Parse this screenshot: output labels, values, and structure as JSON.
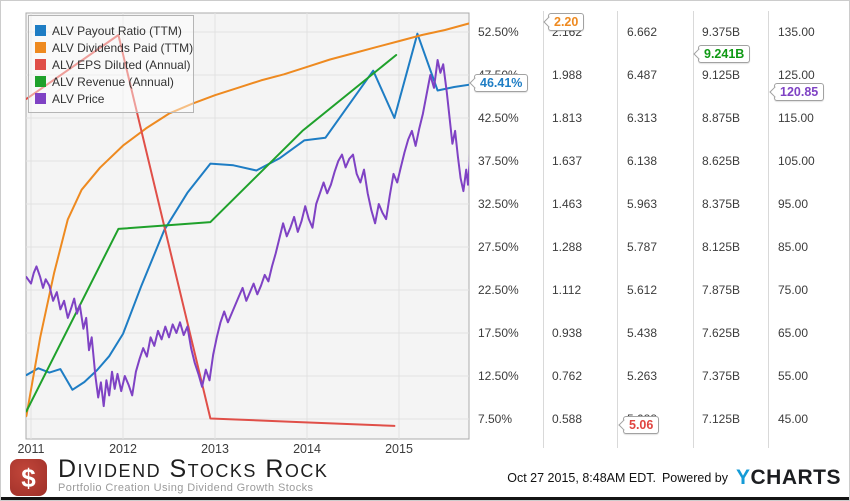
{
  "legend": {
    "items": [
      {
        "label": "ALV Payout Ratio (TTM)",
        "color": "#1e7dc4"
      },
      {
        "label": "ALV Dividends Paid (TTM)",
        "color": "#ee8a20"
      },
      {
        "label": "ALV EPS Diluted (Annual)",
        "color": "#e04f48"
      },
      {
        "label": "ALV Revenue (Annual)",
        "color": "#1fa12b"
      },
      {
        "label": "ALV Price",
        "color": "#7f42c4"
      }
    ]
  },
  "chart_data": {
    "type": "line",
    "grid": true,
    "legend_position": "top-left",
    "x_axis": {
      "tick_labels": [
        "2011",
        "2012",
        "2013",
        "2014",
        "2015"
      ],
      "tick_years": [
        2011,
        2012,
        2013,
        2014,
        2015
      ],
      "range": [
        2010.95,
        2015.79
      ]
    },
    "y_axes": [
      {
        "id": "payout_ratio",
        "tick_labels": [
          "52.50%",
          "47.50%",
          "42.50%",
          "37.50%",
          "32.50%",
          "27.50%",
          "22.50%",
          "17.50%",
          "12.50%",
          "7.50%"
        ],
        "tick_values": [
          52.5,
          47.5,
          42.5,
          37.5,
          32.5,
          27.5,
          22.5,
          17.5,
          12.5,
          7.5
        ],
        "callout": {
          "label": "46.41%",
          "value": 46.41,
          "color": "#1e7dc4"
        }
      },
      {
        "id": "dividends_paid",
        "tick_labels": [
          "2.162",
          "1.988",
          "1.813",
          "1.637",
          "1.463",
          "1.288",
          "1.112",
          "0.938",
          "0.762",
          "0.588"
        ],
        "tick_values": [
          2.162,
          1.988,
          1.813,
          1.637,
          1.463,
          1.288,
          1.112,
          0.938,
          0.762,
          0.588
        ],
        "callout": {
          "label": "2.20",
          "value": 2.2,
          "color": "#ee8a20"
        }
      },
      {
        "id": "eps_diluted",
        "tick_labels": [
          "6.662",
          "6.487",
          "6.313",
          "6.138",
          "5.963",
          "5.787",
          "5.612",
          "5.438",
          "5.263",
          "5.088"
        ],
        "tick_values": [
          6.662,
          6.487,
          6.313,
          6.138,
          5.963,
          5.787,
          5.612,
          5.438,
          5.263,
          5.088
        ],
        "callout": {
          "label": "5.06",
          "value": 5.06,
          "color": "#e04440"
        }
      },
      {
        "id": "revenue",
        "tick_labels": [
          "9.375B",
          "9.125B",
          "8.875B",
          "8.625B",
          "8.375B",
          "8.125B",
          "7.875B",
          "7.625B",
          "7.375B",
          "7.125B"
        ],
        "tick_values": [
          9.375,
          9.125,
          8.875,
          8.625,
          8.375,
          8.125,
          7.875,
          7.625,
          7.375,
          7.125
        ],
        "callout": {
          "label": "9.241B",
          "value": 9.241,
          "color": "#0f9914"
        }
      },
      {
        "id": "price",
        "tick_labels": [
          "135.00",
          "125.00",
          "115.00",
          "105.00",
          "95.00",
          "85.00",
          "75.00",
          "65.00",
          "55.00",
          "45.00"
        ],
        "tick_values": [
          135,
          125,
          115,
          105,
          95,
          85,
          75,
          65,
          55,
          45
        ],
        "callout": {
          "label": "120.85",
          "value": 120.85,
          "color": "#7f42c4"
        }
      }
    ],
    "series": [
      {
        "name": "ALV Payout Ratio (TTM)",
        "axis": "payout_ratio",
        "color": "#1e7dc4",
        "points": [
          [
            2010.95,
            12.6
          ],
          [
            2011.08,
            13.4
          ],
          [
            2011.2,
            12.9
          ],
          [
            2011.32,
            13.3
          ],
          [
            2011.45,
            10.9
          ],
          [
            2011.58,
            11.8
          ],
          [
            2011.72,
            13.2
          ],
          [
            2011.85,
            14.8
          ],
          [
            2012.0,
            17.4
          ],
          [
            2012.2,
            23.0
          ],
          [
            2012.45,
            29.5
          ],
          [
            2012.7,
            33.8
          ],
          [
            2012.95,
            37.2
          ],
          [
            2013.2,
            37.0
          ],
          [
            2013.45,
            36.4
          ],
          [
            2013.7,
            37.8
          ],
          [
            2013.97,
            39.9
          ],
          [
            2014.2,
            40.2
          ],
          [
            2014.72,
            48.0
          ],
          [
            2014.95,
            42.5
          ],
          [
            2015.2,
            52.3
          ],
          [
            2015.42,
            45.7
          ],
          [
            2015.6,
            46.1
          ],
          [
            2015.79,
            46.41
          ]
        ]
      },
      {
        "name": "ALV Dividends Paid (TTM)",
        "axis": "dividends_paid",
        "color": "#ee8a20",
        "points": [
          [
            2010.95,
            0.6
          ],
          [
            2011.1,
            0.92
          ],
          [
            2011.25,
            1.18
          ],
          [
            2011.4,
            1.4
          ],
          [
            2011.55,
            1.52
          ],
          [
            2011.75,
            1.61
          ],
          [
            2012.0,
            1.7
          ],
          [
            2012.25,
            1.77
          ],
          [
            2012.5,
            1.83
          ],
          [
            2012.75,
            1.87
          ],
          [
            2013.0,
            1.905
          ],
          [
            2013.25,
            1.935
          ],
          [
            2013.5,
            1.965
          ],
          [
            2013.75,
            1.99
          ],
          [
            2014.0,
            2.02
          ],
          [
            2014.25,
            2.05
          ],
          [
            2014.5,
            2.075
          ],
          [
            2014.75,
            2.1
          ],
          [
            2015.0,
            2.125
          ],
          [
            2015.25,
            2.15
          ],
          [
            2015.5,
            2.17
          ],
          [
            2015.79,
            2.2
          ]
        ]
      },
      {
        "name": "ALV EPS Diluted (Annual)",
        "axis": "eps_diluted",
        "color": "#e04f48",
        "points": [
          [
            2010.95,
            6.39
          ],
          [
            2011.95,
            6.65
          ],
          [
            2012.95,
            5.09
          ],
          [
            2013.95,
            5.075
          ],
          [
            2014.95,
            5.06
          ]
        ]
      },
      {
        "name": "ALV Revenue (Annual)",
        "axis": "revenue",
        "color": "#1fa12b",
        "points": [
          [
            2010.95,
            7.17
          ],
          [
            2011.95,
            8.23
          ],
          [
            2012.95,
            8.27
          ],
          [
            2013.95,
            8.8
          ],
          [
            2014.97,
            9.241
          ]
        ]
      },
      {
        "name": "ALV Price",
        "axis": "price",
        "color": "#7f42c4",
        "points": [
          [
            2010.95,
            78
          ],
          [
            2011.0,
            76.5
          ],
          [
            2011.03,
            79
          ],
          [
            2011.06,
            80.5
          ],
          [
            2011.1,
            78
          ],
          [
            2011.13,
            75.5
          ],
          [
            2011.16,
            77.5
          ],
          [
            2011.2,
            76
          ],
          [
            2011.24,
            72.5
          ],
          [
            2011.28,
            74.5
          ],
          [
            2011.32,
            70.5
          ],
          [
            2011.36,
            72.5
          ],
          [
            2011.4,
            68.5
          ],
          [
            2011.44,
            71
          ],
          [
            2011.47,
            73
          ],
          [
            2011.5,
            69.5
          ],
          [
            2011.53,
            71.5
          ],
          [
            2011.57,
            66
          ],
          [
            2011.6,
            68.5
          ],
          [
            2011.63,
            61
          ],
          [
            2011.66,
            64
          ],
          [
            2011.7,
            55
          ],
          [
            2011.73,
            50
          ],
          [
            2011.76,
            53.5
          ],
          [
            2011.79,
            48
          ],
          [
            2011.82,
            54
          ],
          [
            2011.85,
            50.5
          ],
          [
            2011.88,
            56
          ],
          [
            2011.91,
            52
          ],
          [
            2011.94,
            55.5
          ],
          [
            2011.98,
            51.5
          ],
          [
            2012.02,
            55
          ],
          [
            2012.06,
            53
          ],
          [
            2012.1,
            50.5
          ],
          [
            2012.14,
            56
          ],
          [
            2012.18,
            59
          ],
          [
            2012.22,
            61.5
          ],
          [
            2012.26,
            59.5
          ],
          [
            2012.3,
            64
          ],
          [
            2012.34,
            62
          ],
          [
            2012.38,
            65.5
          ],
          [
            2012.42,
            63.5
          ],
          [
            2012.46,
            66.5
          ],
          [
            2012.5,
            64
          ],
          [
            2012.54,
            67
          ],
          [
            2012.58,
            65
          ],
          [
            2012.62,
            67.5
          ],
          [
            2012.66,
            64.5
          ],
          [
            2012.7,
            66.5
          ],
          [
            2012.74,
            61.5
          ],
          [
            2012.78,
            58
          ],
          [
            2012.82,
            55.5
          ],
          [
            2012.86,
            52.5
          ],
          [
            2012.9,
            56.5
          ],
          [
            2012.94,
            54
          ],
          [
            2012.98,
            60
          ],
          [
            2013.02,
            64
          ],
          [
            2013.06,
            67.5
          ],
          [
            2013.1,
            70
          ],
          [
            2013.14,
            67.5
          ],
          [
            2013.18,
            69.5
          ],
          [
            2013.22,
            71.5
          ],
          [
            2013.26,
            73.5
          ],
          [
            2013.3,
            75.5
          ],
          [
            2013.34,
            72.5
          ],
          [
            2013.38,
            74.5
          ],
          [
            2013.42,
            76.5
          ],
          [
            2013.46,
            74
          ],
          [
            2013.5,
            76
          ],
          [
            2013.54,
            78.5
          ],
          [
            2013.58,
            77
          ],
          [
            2013.62,
            80.5
          ],
          [
            2013.66,
            83.5
          ],
          [
            2013.7,
            87
          ],
          [
            2013.74,
            90.5
          ],
          [
            2013.78,
            87.5
          ],
          [
            2013.82,
            89.5
          ],
          [
            2013.86,
            92
          ],
          [
            2013.9,
            88.5
          ],
          [
            2013.94,
            91
          ],
          [
            2013.98,
            94.5
          ],
          [
            2014.02,
            91.5
          ],
          [
            2014.06,
            89.5
          ],
          [
            2014.1,
            95
          ],
          [
            2014.14,
            97.5
          ],
          [
            2014.18,
            100
          ],
          [
            2014.22,
            97.5
          ],
          [
            2014.26,
            99.5
          ],
          [
            2014.3,
            102.5
          ],
          [
            2014.34,
            105
          ],
          [
            2014.38,
            106.5
          ],
          [
            2014.42,
            103.5
          ],
          [
            2014.46,
            105.5
          ],
          [
            2014.5,
            106.5
          ],
          [
            2014.54,
            102
          ],
          [
            2014.58,
            100
          ],
          [
            2014.62,
            103
          ],
          [
            2014.66,
            97.5
          ],
          [
            2014.7,
            93.5
          ],
          [
            2014.74,
            90.5
          ],
          [
            2014.78,
            95
          ],
          [
            2014.82,
            93
          ],
          [
            2014.86,
            91.5
          ],
          [
            2014.9,
            97
          ],
          [
            2014.94,
            102
          ],
          [
            2014.98,
            100
          ],
          [
            2015.02,
            103.5
          ],
          [
            2015.06,
            107
          ],
          [
            2015.1,
            110
          ],
          [
            2015.14,
            112
          ],
          [
            2015.18,
            108.5
          ],
          [
            2015.22,
            112.5
          ],
          [
            2015.26,
            116
          ],
          [
            2015.3,
            120.5
          ],
          [
            2015.34,
            125
          ],
          [
            2015.38,
            122
          ],
          [
            2015.42,
            128.5
          ],
          [
            2015.45,
            125.5
          ],
          [
            2015.48,
            127.5
          ],
          [
            2015.52,
            121
          ],
          [
            2015.55,
            115
          ],
          [
            2015.58,
            109
          ],
          [
            2015.61,
            112
          ],
          [
            2015.64,
            106
          ],
          [
            2015.67,
            101
          ],
          [
            2015.7,
            98
          ],
          [
            2015.73,
            103
          ],
          [
            2015.75,
            99.5
          ],
          [
            2015.77,
            105
          ],
          [
            2015.79,
            120.85
          ]
        ]
      }
    ]
  },
  "footer": {
    "brand": {
      "logo_symbol": "$",
      "name": "Dividend Stocks Rock",
      "tagline": "Portfolio Creation Using Dividend Growth Stocks"
    },
    "timestamp": "Oct 27 2015, 8:48AM EDT.",
    "powered_by": "Powered by",
    "ycharts_y": "Y",
    "ycharts_charts": "CHARTS"
  }
}
